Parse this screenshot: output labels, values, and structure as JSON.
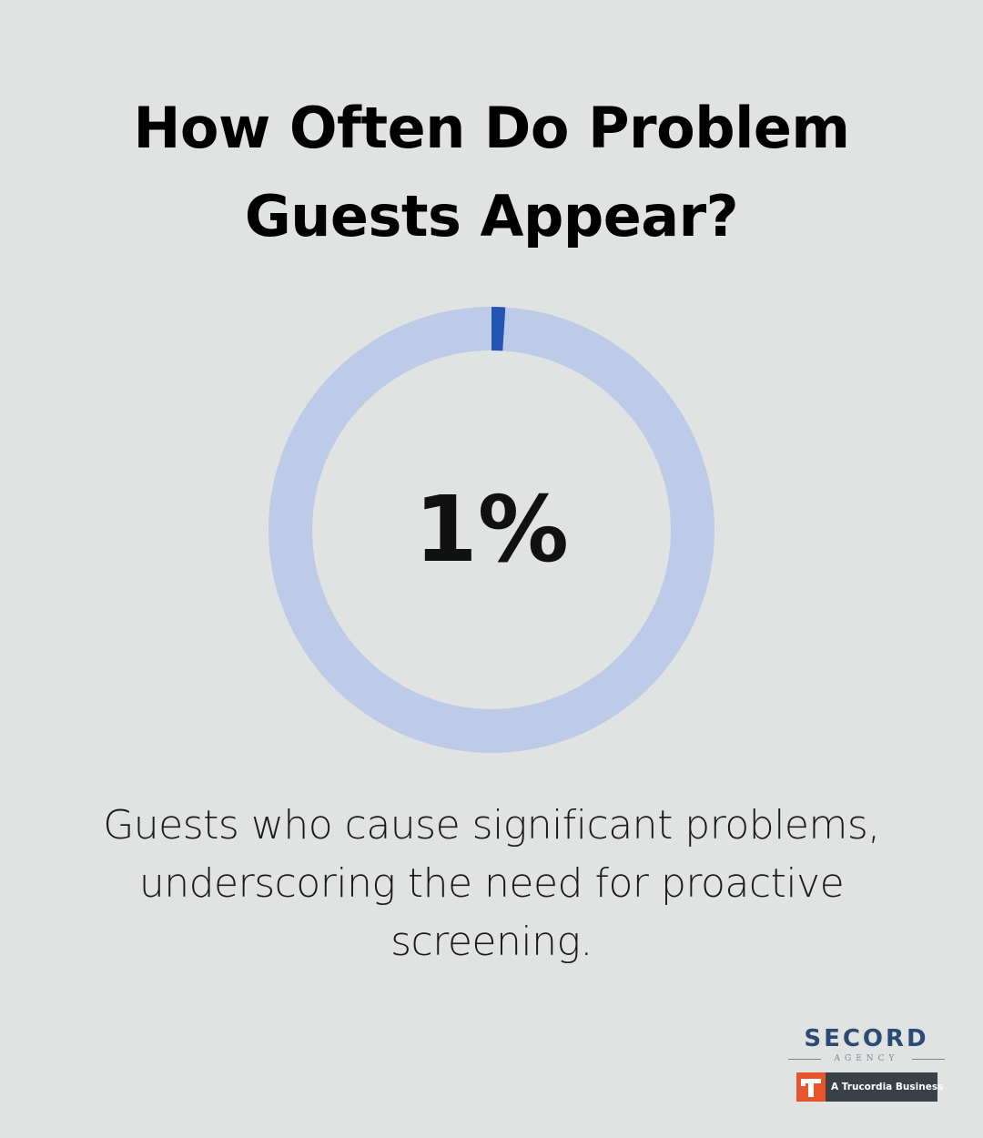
{
  "title": {
    "line1": "How Often Do Problem",
    "line2": "Guests Appear?"
  },
  "chart_data": {
    "type": "pie",
    "style": "donut",
    "value_label": "1%",
    "series": [
      {
        "value": 1,
        "color": "#2454b3"
      },
      {
        "value": 99,
        "color": "#bdcbe8"
      }
    ]
  },
  "caption": {
    "line1": "Guests who cause significant problems,",
    "line2": "underscoring the need for proactive",
    "line3": "screening."
  },
  "logo": {
    "brand": "SECORD",
    "subtitle": "AGENCY",
    "badge_text": "A Trucordia Business",
    "icon": "trucordia-t-icon",
    "brand_color": "#2b4a74",
    "badge_color": "#e8542b"
  },
  "colors": {
    "background": "#e1e3e2",
    "ring_track": "#bdcbe8",
    "ring_fill": "#2454b3"
  }
}
